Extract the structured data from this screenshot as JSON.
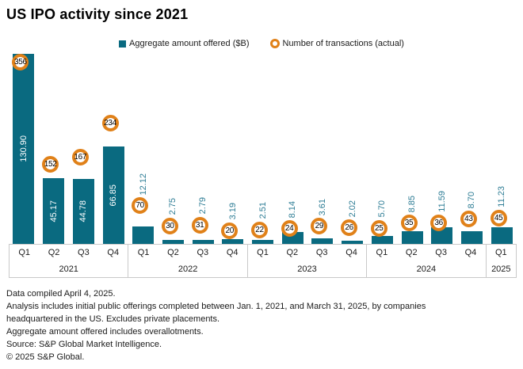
{
  "title": "US IPO activity since 2021",
  "legend": {
    "bar_label": "Aggregate amount offered ($B)",
    "point_label": "Number of transactions (actual)"
  },
  "colors": {
    "bar": "#0a6a80",
    "point_ring": "#e08119",
    "amount_label_outside": "#2e7d95",
    "amount_label_inside": "#ffffff",
    "axis_line": "#c9c9c9",
    "text": "#1a1a1a"
  },
  "chart_data": {
    "type": "bar",
    "title": "US IPO activity since 2021",
    "categories": [
      "Q1 2021",
      "Q2 2021",
      "Q3 2021",
      "Q4 2021",
      "Q1 2022",
      "Q2 2022",
      "Q3 2022",
      "Q4 2022",
      "Q1 2023",
      "Q2 2023",
      "Q3 2023",
      "Q4 2023",
      "Q1 2024",
      "Q2 2024",
      "Q3 2024",
      "Q4 2024",
      "Q1 2025"
    ],
    "x_groups": [
      {
        "year": "2021",
        "quarters": [
          "Q1",
          "Q2",
          "Q3",
          "Q4"
        ]
      },
      {
        "year": "2022",
        "quarters": [
          "Q1",
          "Q2",
          "Q3",
          "Q4"
        ]
      },
      {
        "year": "2023",
        "quarters": [
          "Q1",
          "Q2",
          "Q3",
          "Q4"
        ]
      },
      {
        "year": "2024",
        "quarters": [
          "Q1",
          "Q2",
          "Q3",
          "Q4"
        ]
      },
      {
        "year": "2025",
        "quarters": [
          "Q1"
        ]
      }
    ],
    "series": [
      {
        "name": "Aggregate amount offered ($B)",
        "type": "bar",
        "values": [
          130.9,
          45.17,
          44.78,
          66.85,
          12.12,
          2.75,
          2.79,
          3.19,
          2.51,
          8.14,
          3.61,
          2.02,
          5.7,
          8.85,
          11.59,
          8.7,
          11.23
        ]
      },
      {
        "name": "Number of transactions (actual)",
        "type": "point",
        "values": [
          356,
          152,
          167,
          234,
          70,
          30,
          31,
          20,
          22,
          24,
          29,
          26,
          25,
          35,
          36,
          43,
          45
        ]
      }
    ],
    "ylim": [
      0,
      130.9
    ],
    "y2lim": [
      0,
      356
    ],
    "legend_position": "top",
    "grid": false
  },
  "footer": {
    "lines": [
      "Data compiled April 4, 2025.",
      "Analysis includes initial public offerings completed between Jan. 1, 2021, and March 31, 2025, by companies",
      "headquartered in the US. Excludes private placements.",
      "Aggregate amount offered includes overallotments.",
      "Source: S&P Global Market Intelligence.",
      "© 2025 S&P Global."
    ]
  }
}
